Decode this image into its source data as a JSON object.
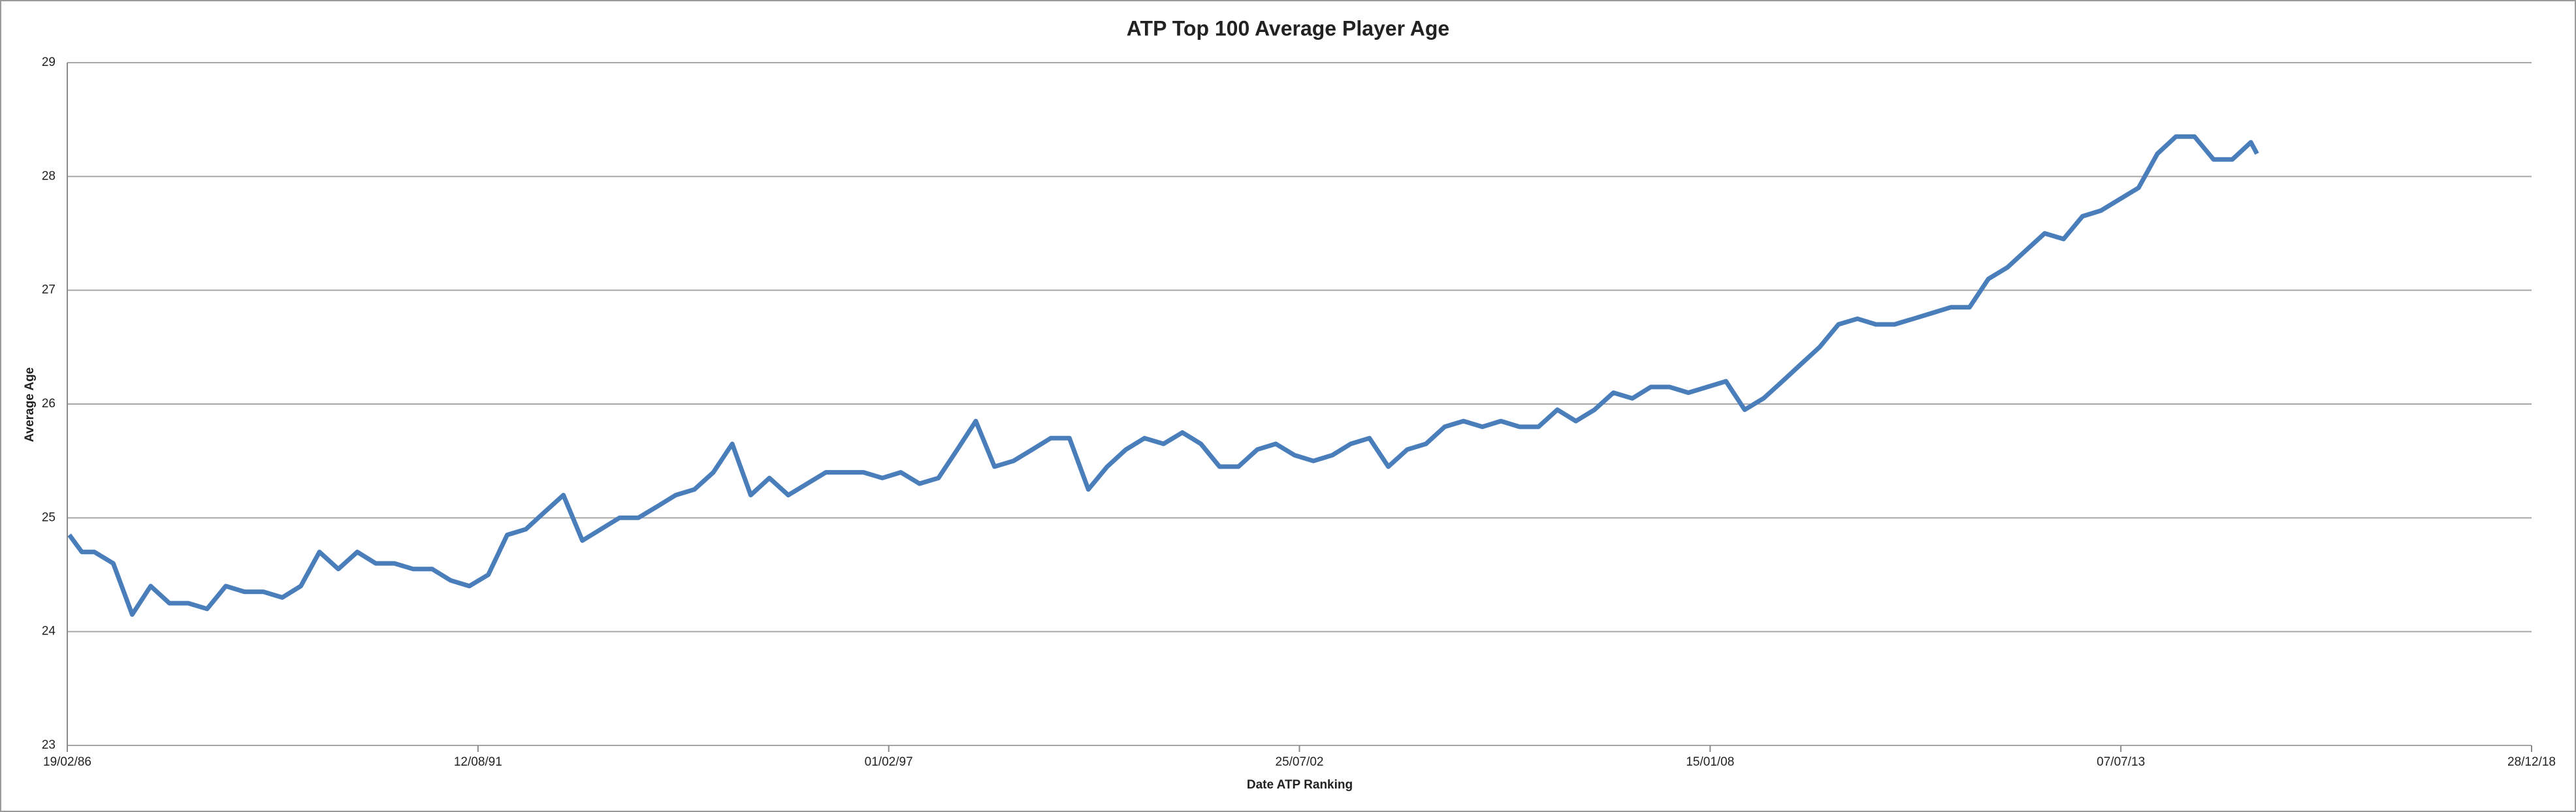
{
  "chart_data": {
    "type": "line",
    "title": "ATP Top 100 Average Player Age",
    "x_label": "Date ATP Ranking",
    "y_label": "Average Age",
    "xlim": [
      "1986-02-19",
      "2018-12-28"
    ],
    "xticks": [
      {
        "value": "1986-02-19",
        "label": "19/02/86"
      },
      {
        "value": "1991-08-12",
        "label": "12/08/91"
      },
      {
        "value": "1997-02-01",
        "label": "01/02/97"
      },
      {
        "value": "2002-07-25",
        "label": "25/07/02"
      },
      {
        "value": "2008-01-15",
        "label": "15/01/08"
      },
      {
        "value": "2013-07-07",
        "label": "07/07/13"
      },
      {
        "value": "2018-12-28",
        "label": "28/12/18"
      }
    ],
    "ylim": [
      23,
      29
    ],
    "yticks": [
      23,
      24,
      25,
      26,
      27,
      28,
      29
    ],
    "grid": true,
    "x": [
      "1986-03-01",
      "1986-05-01",
      "1986-07-01",
      "1986-10-01",
      "1987-01-01",
      "1987-04-01",
      "1987-07-01",
      "1987-10-01",
      "1988-01-01",
      "1988-04-01",
      "1988-07-01",
      "1988-10-01",
      "1989-01-01",
      "1989-04-01",
      "1989-07-01",
      "1989-10-01",
      "1990-01-01",
      "1990-04-01",
      "1990-07-01",
      "1990-10-01",
      "1991-01-01",
      "1991-04-01",
      "1991-07-01",
      "1991-10-01",
      "1992-01-01",
      "1992-04-01",
      "1992-07-01",
      "1992-10-01",
      "1993-01-01",
      "1993-04-01",
      "1993-07-01",
      "1993-10-01",
      "1994-01-01",
      "1994-04-01",
      "1994-07-01",
      "1994-10-01",
      "1995-01-01",
      "1995-04-01",
      "1995-07-01",
      "1995-10-01",
      "1996-01-01",
      "1996-04-01",
      "1996-07-01",
      "1996-10-01",
      "1997-01-01",
      "1997-04-01",
      "1997-07-01",
      "1997-10-01",
      "1998-01-01",
      "1998-04-01",
      "1998-07-01",
      "1998-10-01",
      "1999-01-01",
      "1999-04-01",
      "1999-07-01",
      "1999-10-01",
      "2000-01-01",
      "2000-04-01",
      "2000-07-01",
      "2000-10-01",
      "2001-01-01",
      "2001-04-01",
      "2001-07-01",
      "2001-10-01",
      "2002-01-01",
      "2002-04-01",
      "2002-07-01",
      "2002-10-01",
      "2003-01-01",
      "2003-04-01",
      "2003-07-01",
      "2003-10-01",
      "2004-01-01",
      "2004-04-01",
      "2004-07-01",
      "2004-10-01",
      "2005-01-01",
      "2005-04-01",
      "2005-07-01",
      "2005-10-01",
      "2006-01-01",
      "2006-04-01",
      "2006-07-01",
      "2006-10-01",
      "2007-01-01",
      "2007-04-01",
      "2007-07-01",
      "2007-10-01",
      "2008-01-01",
      "2008-04-01",
      "2008-07-01",
      "2008-10-01",
      "2009-01-01",
      "2009-04-01",
      "2009-07-01",
      "2009-10-01",
      "2010-01-01",
      "2010-04-01",
      "2010-07-01",
      "2010-10-01",
      "2011-01-01",
      "2011-04-01",
      "2011-07-01",
      "2011-10-01",
      "2012-01-01",
      "2012-04-01",
      "2012-07-01",
      "2012-10-01",
      "2013-01-01",
      "2013-04-01",
      "2013-07-01",
      "2013-10-01",
      "2014-01-01",
      "2014-04-01",
      "2014-07-01",
      "2014-10-01",
      "2015-01-01",
      "2015-04-01",
      "2015-05-01"
    ],
    "series": [
      {
        "name": "Average Age",
        "color": "#4a7ebb",
        "values": [
          24.85,
          24.7,
          24.7,
          24.6,
          24.15,
          24.4,
          24.25,
          24.25,
          24.2,
          24.4,
          24.35,
          24.35,
          24.3,
          24.4,
          24.7,
          24.55,
          24.7,
          24.6,
          24.6,
          24.55,
          24.55,
          24.45,
          24.4,
          24.5,
          24.85,
          24.9,
          25.05,
          25.2,
          24.8,
          24.9,
          25.0,
          25.0,
          25.1,
          25.2,
          25.25,
          25.4,
          25.65,
          25.2,
          25.35,
          25.2,
          25.3,
          25.4,
          25.4,
          25.4,
          25.35,
          25.4,
          25.3,
          25.35,
          25.6,
          25.85,
          25.45,
          25.5,
          25.6,
          25.7,
          25.7,
          25.25,
          25.45,
          25.6,
          25.7,
          25.65,
          25.75,
          25.65,
          25.45,
          25.45,
          25.6,
          25.65,
          25.55,
          25.5,
          25.55,
          25.65,
          25.7,
          25.45,
          25.6,
          25.65,
          25.8,
          25.85,
          25.8,
          25.85,
          25.8,
          25.8,
          25.95,
          25.85,
          25.95,
          26.1,
          26.05,
          26.15,
          26.15,
          26.1,
          26.15,
          26.2,
          25.95,
          26.05,
          26.2,
          26.35,
          26.5,
          26.7,
          26.75,
          26.7,
          26.7,
          26.75,
          26.8,
          26.85,
          26.85,
          27.1,
          27.2,
          27.35,
          27.5,
          27.45,
          27.65,
          27.7,
          27.8,
          27.9,
          28.2,
          28.35,
          28.35,
          28.15,
          28.15,
          28.3,
          28.2
        ]
      }
    ]
  }
}
